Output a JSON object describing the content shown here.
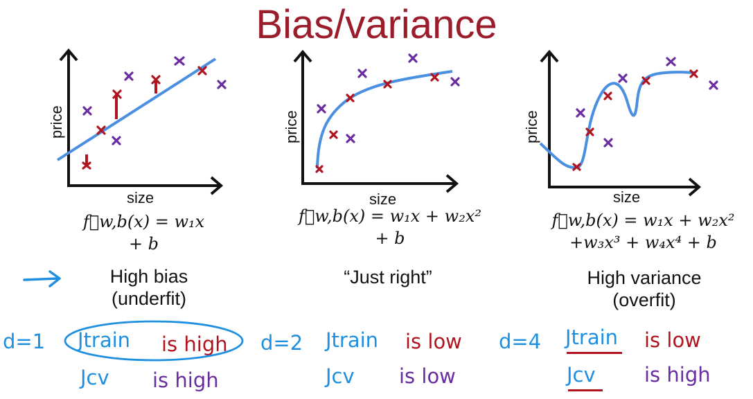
{
  "title": "Bias/variance",
  "panels": [
    {
      "xlabel": "size",
      "ylabel": "price",
      "formula": [
        "f⃗w,b(x) = w₁x",
        "+ b"
      ],
      "caption": [
        "High bias",
        "(underfit)"
      ]
    },
    {
      "xlabel": "size",
      "ylabel": "price",
      "formula": [
        "f⃗w,b(x) = w₁x + w₂x²",
        "+ b"
      ],
      "caption": [
        "“Just right”"
      ]
    },
    {
      "xlabel": "size",
      "ylabel": "price",
      "formula": [
        "f⃗w,b(x) = w₁x + w₂x²",
        "+w₃x³ + w₄x⁴ + b"
      ],
      "caption": [
        "High variance",
        "(overfit)"
      ]
    }
  ],
  "notes": [
    {
      "degree": "d=1",
      "j_train": "Jtrain",
      "train_status": "is high",
      "j_cv": "Jcv",
      "cv_status": "is high"
    },
    {
      "degree": "d=2",
      "j_train": "Jtrain",
      "train_status": "is low",
      "j_cv": "Jcv",
      "cv_status": "is low"
    },
    {
      "degree": "d=4",
      "j_train": "Jtrain",
      "train_status": "is low",
      "j_cv": "Jcv",
      "cv_status": "is high"
    }
  ],
  "colors": {
    "title": "#9b1c2a",
    "fit_curve": "#4a8fe0",
    "handwriting_blue": "#1f8fe0",
    "point_red": "#b0151f",
    "point_purple": "#6a2da0"
  }
}
